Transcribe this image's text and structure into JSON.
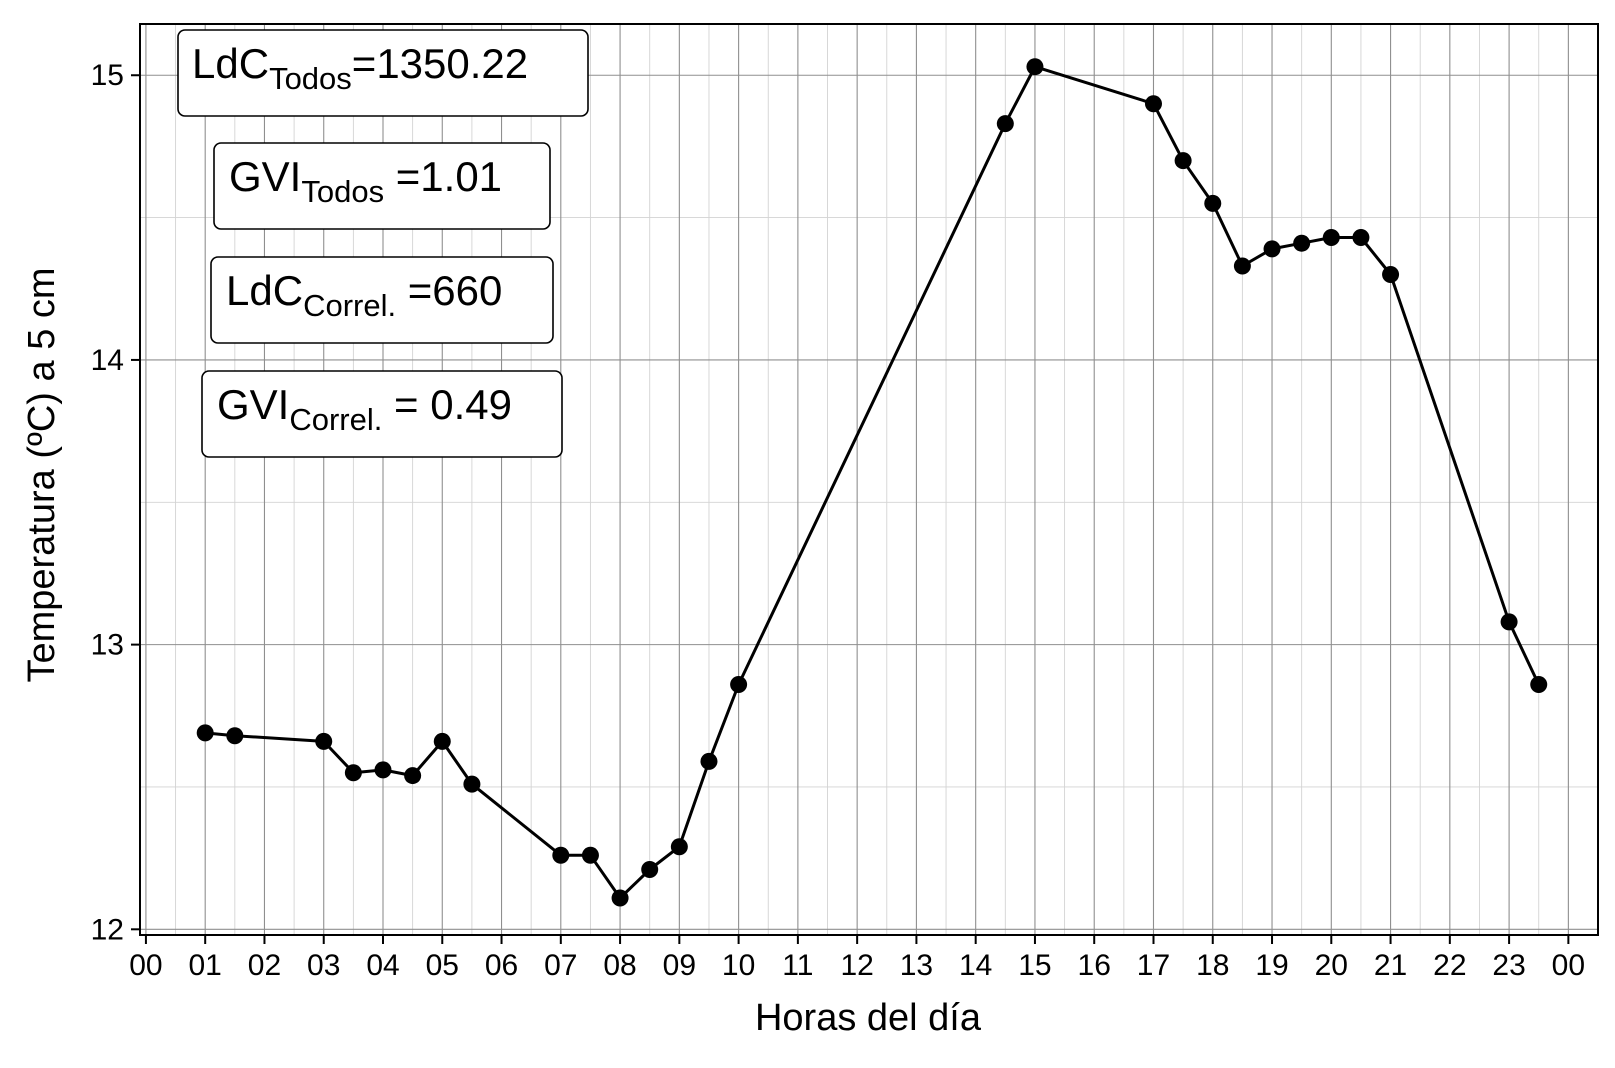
{
  "chart_data": {
    "type": "line",
    "xlabel": "Horas del día",
    "ylabel": "Temperatura (ºC) a 5 cm",
    "x_unit": "hours",
    "xlim": [
      -0.1,
      24.5
    ],
    "ylim": [
      11.98,
      15.18
    ],
    "x_ticks": [
      0,
      1,
      2,
      3,
      4,
      5,
      6,
      7,
      8,
      9,
      10,
      11,
      12,
      13,
      14,
      15,
      16,
      17,
      18,
      19,
      20,
      21,
      22,
      23,
      24
    ],
    "x_tick_labels": [
      "00",
      "01",
      "02",
      "03",
      "04",
      "05",
      "06",
      "07",
      "08",
      "09",
      "10",
      "11",
      "12",
      "13",
      "14",
      "15",
      "16",
      "17",
      "18",
      "19",
      "20",
      "21",
      "22",
      "23",
      "00"
    ],
    "y_ticks": [
      12,
      13,
      14,
      15
    ],
    "y_tick_labels": [
      "12",
      "13",
      "14",
      "15"
    ],
    "grid": true,
    "line_color": "#000000",
    "series": [
      {
        "x": [
          1,
          1.5,
          3,
          3.5,
          4,
          4.5,
          5,
          5.5,
          7,
          7.5,
          8,
          8.5,
          9,
          9.5,
          10,
          14.5,
          15,
          17,
          17.5,
          18,
          18.5,
          19,
          19.5,
          20,
          20.5,
          21,
          23,
          23.5
        ],
        "values": [
          12.69,
          12.68,
          12.66,
          12.55,
          12.56,
          12.54,
          12.66,
          12.51,
          12.26,
          12.26,
          12.11,
          12.21,
          12.29,
          12.59,
          12.86,
          14.83,
          15.03,
          14.9,
          14.7,
          14.55,
          14.33,
          14.39,
          14.41,
          14.43,
          14.43,
          14.3,
          13.08,
          12.86
        ]
      }
    ],
    "annotations": [
      {
        "main": "LdC",
        "sub": "Todos",
        "rest": "=1350.22"
      },
      {
        "main": "GVI",
        "sub": "Todos",
        "rest": " =1.01"
      },
      {
        "main": "LdC",
        "sub": "Correl.",
        "rest": " =660"
      },
      {
        "main": "GVI",
        "sub": "Correl.",
        "rest": " = 0.49"
      }
    ]
  }
}
